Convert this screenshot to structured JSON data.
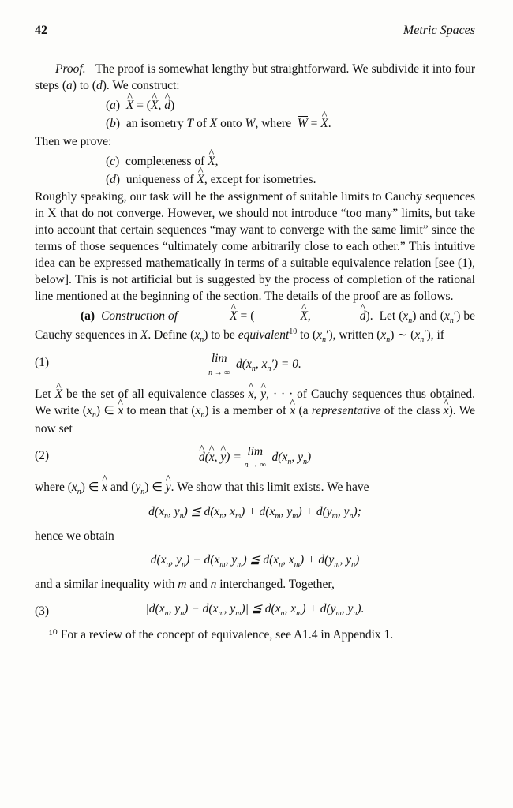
{
  "header": {
    "page": "42",
    "chapter": "Metric Spaces"
  },
  "intro": {
    "p1": "Proof.   The proof is somewhat lengthy but straightforward. We subdivide it into four steps (a) to (d). We construct:",
    "la": "(a)  X̂ = (X̂, d̂)",
    "lb": "(b)  an isometry T of X onto W, where  W̄ = X̂.",
    "then": "Then we prove:",
    "lc": "(c)  completeness of X̂,",
    "ld": "(d)  uniqueness of X̂, except for isometries.",
    "p2": "Roughly speaking, our task will be the assignment of suitable limits to Cauchy sequences in X that do not converge. However, we should not introduce “too many” limits, but take into account that certain sequences “may want to converge with the same limit” since the terms of those sequences “ultimately come arbitrarily close to each other.” This intuitive idea can be expressed mathematically in terms of a suitable equivalence relation [see (1), below]. This is not artificial but is suggested by the process of completion of the rational line mentioned at the beginning of the section. The details of the proof are as follows."
  },
  "partA": {
    "lead_bold": "(a)",
    "lead_ital": "Construction of  X̂ = (X̂, d̂).",
    "lead_rest": "  Let (xₙ) and (xₙ′) be Cauchy sequences in X. Define (xₙ) to be equivalent¹⁰ to (xₙ′), written (xₙ) ∼ (xₙ′), if",
    "eq1_num": "(1)",
    "eq1": "lim  d(xₙ, xₙ′) = 0.",
    "eq1_sub": "n → ∞",
    "p3": "Let X̂ be the set of all equivalence classes x̂, ŷ, · · · of Cauchy sequences thus obtained. We write (xₙ) ∈ x̂ to mean that (xₙ) is a member of x̂ (a representative of the class x̂). We now set",
    "eq2_num": "(2)",
    "eq2": "d̂(x̂, ŷ) =  lim  d(xₙ, yₙ)",
    "eq2_sub": "n → ∞",
    "p4": "where (xₙ) ∈ x̂ and (yₙ) ∈ ŷ. We show that this limit exists. We have",
    "eq_tri": "d(xₙ, yₙ) ≦ d(xₙ, xₘ) + d(xₘ, yₘ) + d(yₘ, yₙ);",
    "p5": "hence we obtain",
    "eq_diff": "d(xₙ, yₙ) − d(xₘ, yₘ) ≦ d(xₙ, xₘ) + d(yₘ, yₙ)",
    "p6": "and a similar inequality with m and n interchanged. Together,",
    "eq3_num": "(3)",
    "eq3": "|d(xₙ, yₙ) − d(xₘ, yₘ)| ≦ d(xₙ, xₘ) + d(yₘ, yₙ)."
  },
  "footnote": "¹⁰ For a review of the concept of equivalence, see A1.4 in Appendix 1."
}
